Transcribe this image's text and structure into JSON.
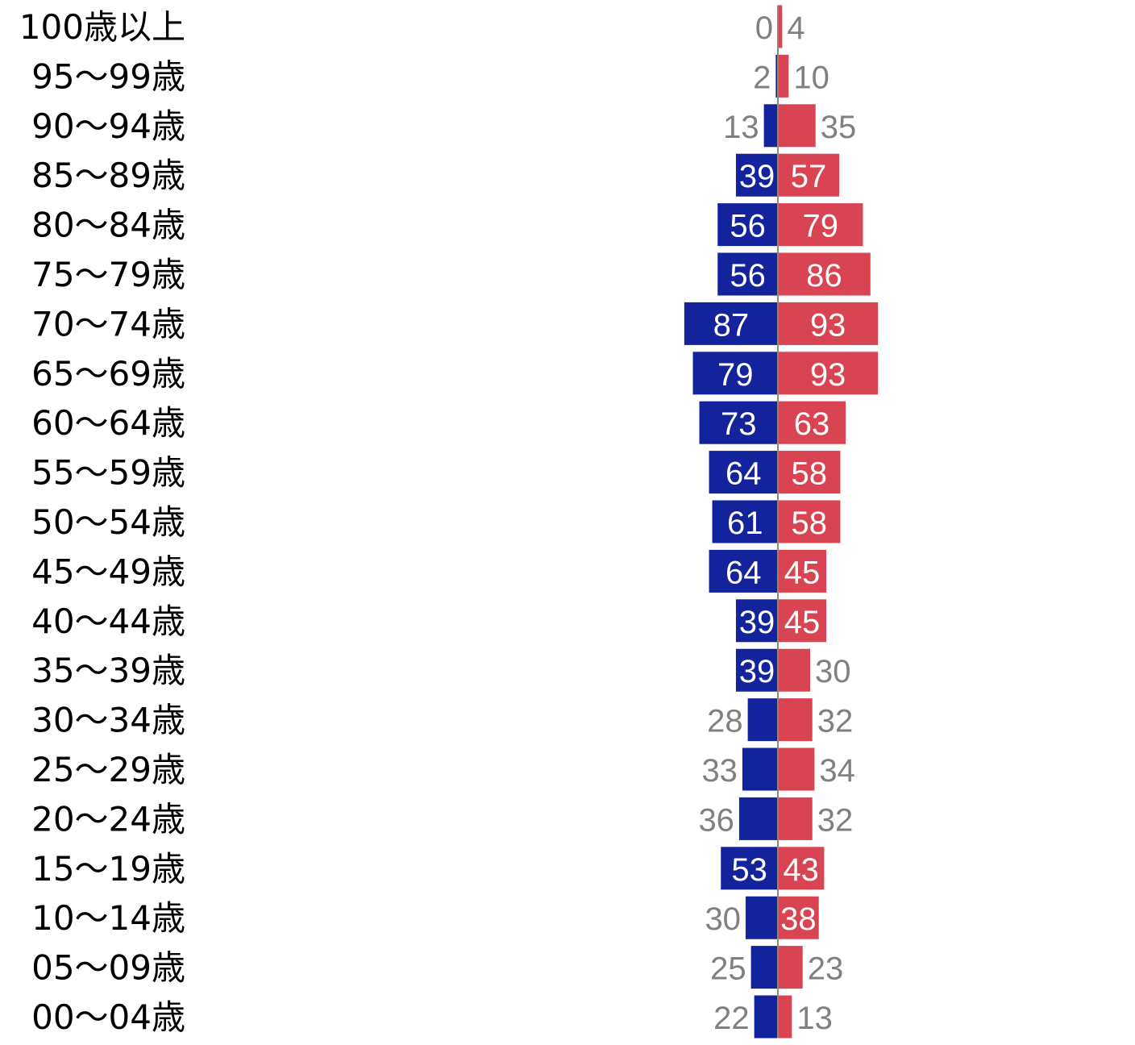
{
  "chart_data": {
    "type": "bar",
    "orientation": "horizontal",
    "layout": "population-pyramid",
    "title": "",
    "xlabel": "",
    "ylabel": "",
    "grid": false,
    "legend": "none",
    "categories": [
      "100歳以上",
      "95～99歳",
      "90～94歳",
      "85～89歳",
      "80～84歳",
      "75～79歳",
      "70～74歳",
      "65～69歳",
      "60～64歳",
      "55～59歳",
      "50～54歳",
      "45～49歳",
      "40～44歳",
      "35～39歳",
      "30～34歳",
      "25～29歳",
      "20～24歳",
      "15～19歳",
      "10～14歳",
      "05～09歳",
      "00～04歳"
    ],
    "series": [
      {
        "side": "left",
        "color": "#13239c",
        "values": [
          0,
          2,
          13,
          39,
          56,
          56,
          87,
          79,
          73,
          64,
          61,
          64,
          39,
          39,
          28,
          33,
          36,
          53,
          30,
          25,
          22
        ]
      },
      {
        "side": "right",
        "color": "#d94452",
        "values": [
          4,
          10,
          35,
          57,
          79,
          86,
          93,
          93,
          63,
          58,
          58,
          45,
          45,
          30,
          32,
          34,
          32,
          43,
          38,
          23,
          13
        ]
      }
    ],
    "xlim": [
      0,
      100
    ],
    "label_colors": {
      "inside": "#ffffff",
      "outside": "#808080"
    },
    "axis_color": "#888888"
  }
}
